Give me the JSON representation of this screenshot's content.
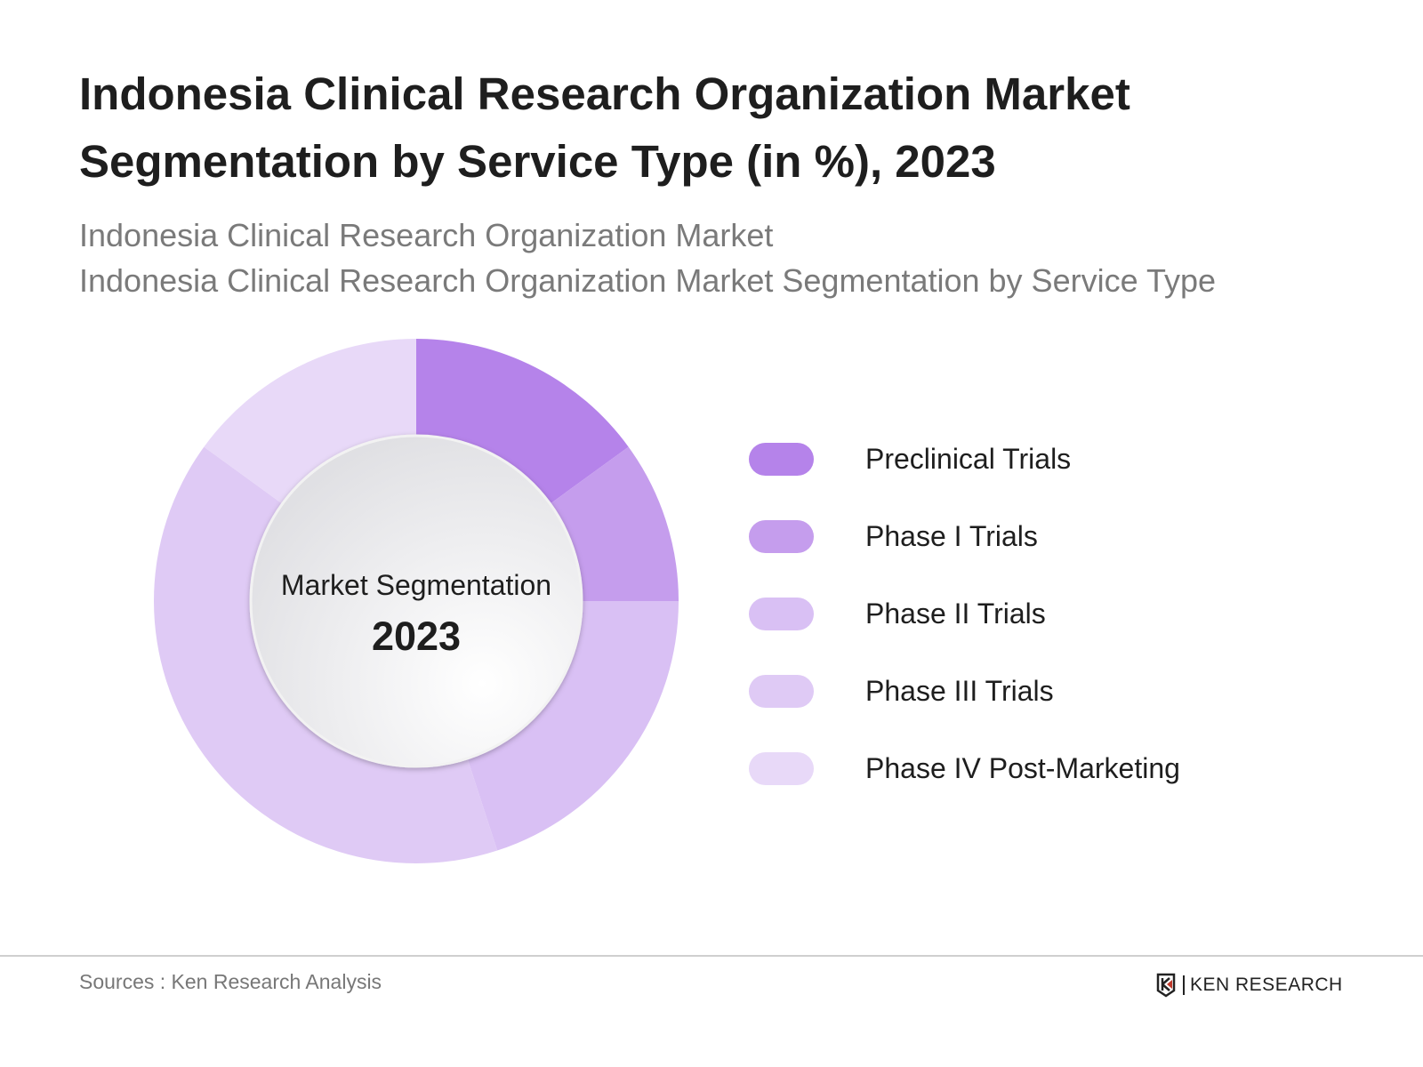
{
  "chart_data": {
    "type": "pie",
    "variant": "donut",
    "title": "Indonesia Clinical Research Organization Market Segmentation by Service Type (in %), 2023",
    "subtitle_lines": [
      "Indonesia Clinical Research Organization Market",
      "Indonesia Clinical Research Organization Market Segmentation by Service Type"
    ],
    "center_label": "Market Segmentation",
    "center_year": "2023",
    "categories": [
      "Preclinical Trials",
      "Phase I Trials",
      "Phase II Trials",
      "Phase III Trials",
      "Phase IV Post-Marketing"
    ],
    "values": [
      15,
      10,
      20,
      40,
      15
    ],
    "colors": [
      "#b583ea",
      "#c59ded",
      "#d9c0f4",
      "#dfcaf5",
      "#e8d9f8"
    ],
    "legend_position": "right"
  },
  "footer": {
    "source": "Sources : Ken Research Analysis",
    "logo_text": "KEN RESEARCH"
  }
}
